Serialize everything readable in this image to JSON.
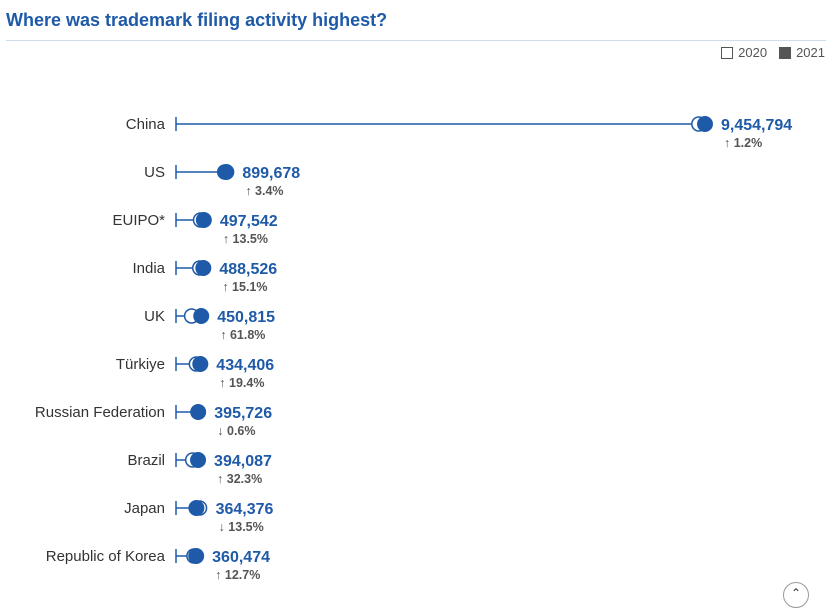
{
  "chart_data": {
    "type": "dumbbell",
    "title": "Where was trademark filing activity highest?",
    "legend": [
      "2020",
      "2021"
    ],
    "legend_position": "top-right",
    "categories": [
      "China",
      "US",
      "EUIPO*",
      "India",
      "UK",
      "Türkiye",
      "Russian Federation",
      "Brazil",
      "Japan",
      "Republic of Korea"
    ],
    "series": [
      {
        "name": "2020",
        "values": [
          9344000,
          870000,
          438000,
          424000,
          278700,
          363800,
          398100,
          297900,
          421200,
          319800
        ]
      },
      {
        "name": "2021",
        "values": [
          9454794,
          899678,
          497542,
          488526,
          450815,
          434406,
          395726,
          394087,
          364376,
          360474
        ]
      }
    ],
    "value_labels": [
      "9,454,794",
      "899,678",
      "497,542",
      "488,526",
      "450,815",
      "434,406",
      "395,726",
      "394,087",
      "364,376",
      "360,474"
    ],
    "change_labels": [
      "↑ 1.2%",
      "↑ 3.4%",
      "↑ 13.5%",
      "↑ 15.1%",
      "↑ 61.8%",
      "↑ 19.4%",
      "↓ 0.6%",
      "↑ 32.3%",
      "↓ 13.5%",
      "↑ 12.7%"
    ],
    "xlim": [
      0,
      9454794
    ],
    "colors": {
      "marker": "#1e5aa8",
      "title": "#1e5aa8",
      "change_text": "#555555"
    }
  }
}
